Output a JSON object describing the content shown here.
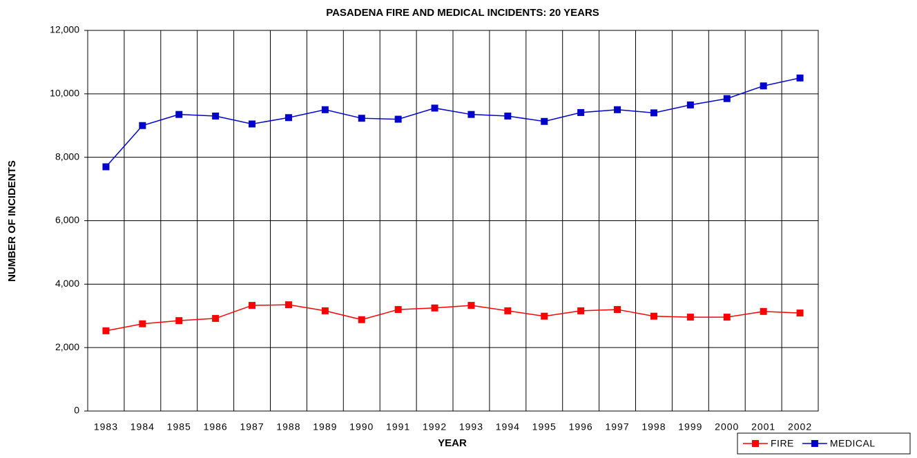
{
  "chart_data": {
    "type": "line",
    "title": "PASADENA FIRE AND MEDICAL INCIDENTS: 20 YEARS",
    "x_label": "YEAR",
    "y_label": "NUMBER OF INCIDENTS",
    "categories": [
      "1983",
      "1984",
      "1985",
      "1986",
      "1987",
      "1988",
      "1989",
      "1990",
      "1991",
      "1992",
      "1993",
      "1994",
      "1995",
      "1996",
      "1997",
      "1998",
      "1999",
      "2000",
      "2001",
      "2002"
    ],
    "series": [
      {
        "name": "FIRE",
        "color": "#ff0000",
        "values": [
          2530,
          2750,
          2850,
          2920,
          3330,
          3350,
          3160,
          2880,
          3200,
          3250,
          3330,
          3160,
          2990,
          3160,
          3200,
          2990,
          2960,
          2960,
          3140,
          3090
        ]
      },
      {
        "name": "MEDICAL",
        "color": "#0000cc",
        "values": [
          7700,
          9000,
          9350,
          9300,
          9050,
          9250,
          9500,
          9230,
          9200,
          9550,
          9350,
          9300,
          9130,
          9410,
          9500,
          9400,
          9650,
          9850,
          10250,
          10500
        ]
      }
    ],
    "ylim": [
      0,
      12000
    ],
    "yticks": [
      0,
      {
        "value": 2000,
        "label": "2,000"
      },
      {
        "value": 4000,
        "label": "4,000"
      },
      {
        "value": 6000,
        "label": "6,000"
      },
      {
        "value": 8000,
        "label": "8,000"
      },
      {
        "value": 10000,
        "label": "10,000"
      },
      {
        "value": 12000,
        "label": "12,000"
      }
    ],
    "grid": true,
    "legend": "bottom-right"
  }
}
